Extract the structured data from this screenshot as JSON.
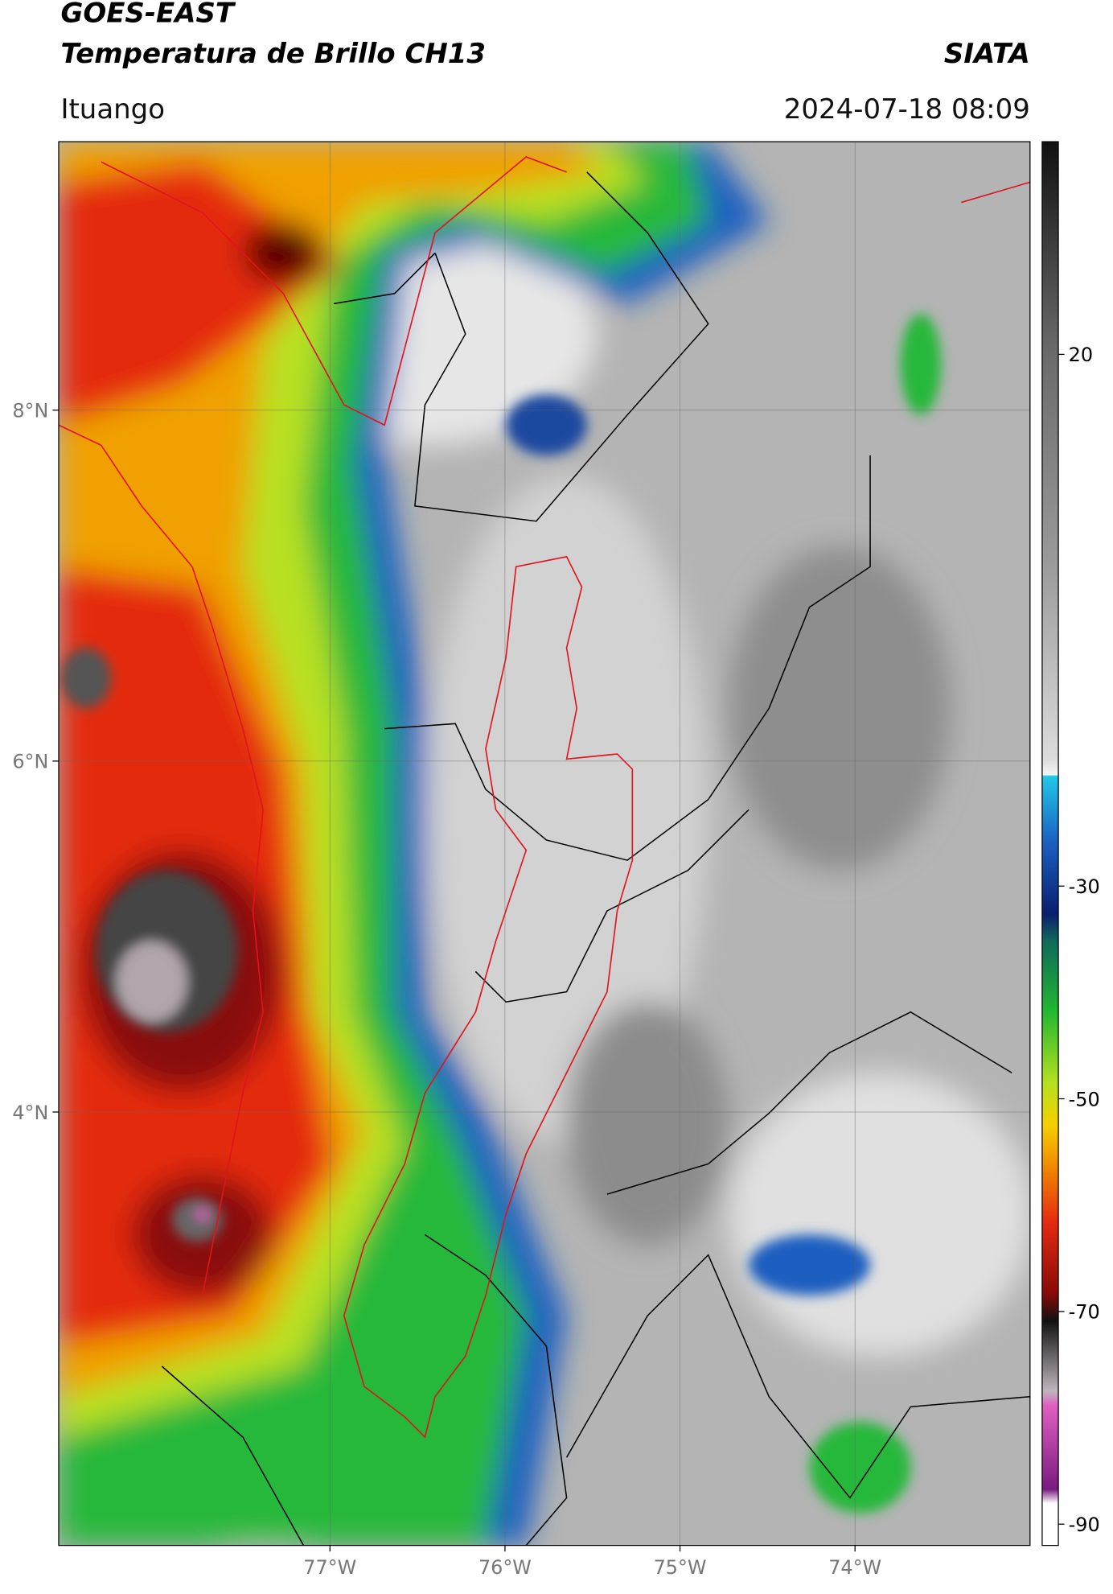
{
  "header": {
    "source": "GOES-EAST",
    "product": "Temperatura de Brillo CH13",
    "brand": "SIATA",
    "place": "Ituango",
    "datetime": "2024-07-18 08:09"
  },
  "map": {
    "xlim": [
      -78.55,
      -73.0
    ],
    "ylim": [
      1.53,
      9.53
    ],
    "xticks": [
      {
        "value": -77,
        "label": "77°W"
      },
      {
        "value": -76,
        "label": "76°W"
      },
      {
        "value": -75,
        "label": "75°W"
      },
      {
        "value": -74,
        "label": "74°W"
      }
    ],
    "yticks": [
      {
        "value": 8,
        "label": "8°N"
      },
      {
        "value": 6,
        "label": "6°N"
      },
      {
        "value": 4,
        "label": "4°N"
      }
    ],
    "grid": true
  },
  "colorbar": {
    "lim": [
      -92,
      40
    ],
    "ticks": [
      20,
      -30,
      -50,
      -70,
      -90
    ]
  }
}
